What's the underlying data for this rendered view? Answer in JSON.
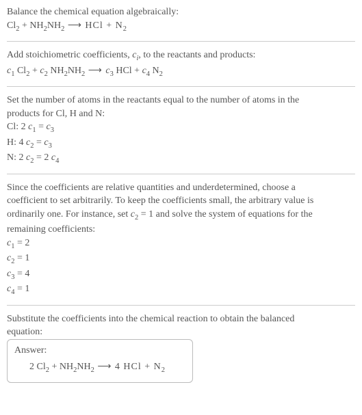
{
  "line1": "Balance the chemical equation algebraically:",
  "eq1_a": "Cl",
  "eq1_a_sub": "2",
  "eq1_plus1": " + NH",
  "eq1_b_sub": "2",
  "eq1_b2": "NH",
  "eq1_b2_sub": "2",
  "eq1_arrow": "  ⟶  HCl + N",
  "eq1_n_sub": "2",
  "line2": "Add stoichiometric coefficients, ",
  "line2_ci": "c",
  "line2_ci_sub": "i",
  "line2_b": ", to the reactants and products:",
  "eq2_c1": "c",
  "eq2_c1s": "1",
  "eq2_cl": " Cl",
  "eq2_cl_s": "2",
  "eq2_pl1": " + ",
  "eq2_c2": "c",
  "eq2_c2s": "2",
  "eq2_nh": " NH",
  "eq2_nh_s": "2",
  "eq2_nh2": "NH",
  "eq2_nh2_s": "2",
  "eq2_arrow": "  ⟶  ",
  "eq2_c3": "c",
  "eq2_c3s": "3",
  "eq2_hcl": " HCl + ",
  "eq2_c4": "c",
  "eq2_c4s": "4",
  "eq2_n": " N",
  "eq2_n_s": "2",
  "line3a": "Set the number of atoms in the reactants equal to the number of atoms in the",
  "line3b": "products for Cl, H and N:",
  "row_cl_label": "Cl:   ",
  "row_cl_lhs": "2 ",
  "row_cl_c1": "c",
  "row_cl_c1s": "1",
  "row_cl_eq": " = ",
  "row_cl_c3": "c",
  "row_cl_c3s": "3",
  "row_h_label": "H:   ",
  "row_h_lhs": "4 ",
  "row_h_c2": "c",
  "row_h_c2s": "2",
  "row_h_eq": " = ",
  "row_h_c3": "c",
  "row_h_c3s": "3",
  "row_n_label": "N:   ",
  "row_n_lhs": "2 ",
  "row_n_c2": "c",
  "row_n_c2s": "2",
  "row_n_eq": " = 2 ",
  "row_n_c4": "c",
  "row_n_c4s": "4",
  "line4a": "Since the coefficients are relative quantities and underdetermined, choose a",
  "line4b": "coefficient to set arbitrarily. To keep the coefficients small, the arbitrary value is",
  "line4c_a": "ordinarily one. For instance, set ",
  "line4c_c2": "c",
  "line4c_c2s": "2",
  "line4c_eq": " = 1",
  "line4c_b": " and solve the system of equations for the",
  "line4d": "remaining coefficients:",
  "sol1_c": "c",
  "sol1_s": "1",
  "sol1_v": " = 2",
  "sol2_c": "c",
  "sol2_s": "2",
  "sol2_v": " = 1",
  "sol3_c": "c",
  "sol3_s": "3",
  "sol3_v": " = 4",
  "sol4_c": "c",
  "sol4_s": "4",
  "sol4_v": " = 1",
  "line5a": "Substitute the coefficients into the chemical reaction to obtain the balanced",
  "line5b": "equation:",
  "answer_label": "Answer:",
  "ans_pre": "2 Cl",
  "ans_cl_s": "2",
  "ans_mid1": " + NH",
  "ans_nh_s": "2",
  "ans_nh2": "NH",
  "ans_nh2_s": "2",
  "ans_arrow": "  ⟶  4 HCl + N",
  "ans_n_s": "2"
}
